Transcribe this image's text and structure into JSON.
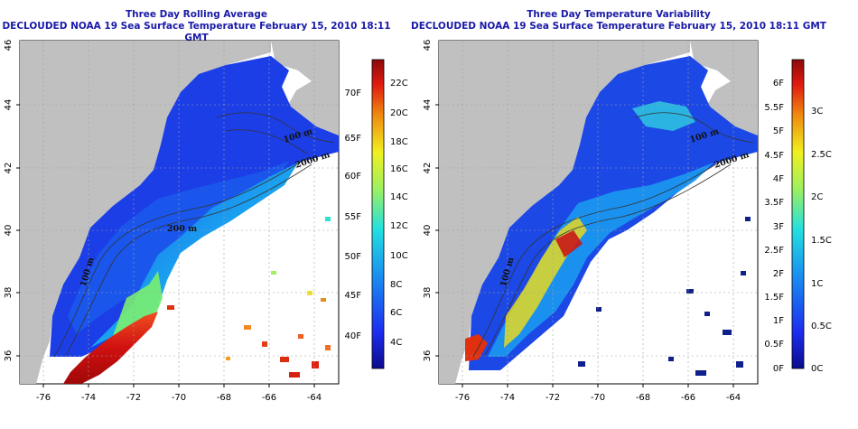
{
  "left_panel": {
    "title_line1": "Three Day Rolling Average",
    "title_line2": "DECLOUDED NOAA 19 Sea Surface Temperature February 15, 2010 18:11 GMT",
    "lat_ticks": [
      "46",
      "44",
      "42",
      "40",
      "38",
      "36"
    ],
    "lon_ticks": [
      "-76",
      "-74",
      "-72",
      "-70",
      "-68",
      "-66",
      "-64"
    ],
    "depth_labels": [
      "100 m",
      "2000 m",
      "200 m",
      "100 m"
    ],
    "colorbar_f_labels": [
      "70F",
      "65F",
      "60F",
      "55F",
      "50F",
      "45F",
      "40F"
    ],
    "colorbar_c_labels": [
      "22C",
      "20C",
      "18C",
      "16C",
      "14C",
      "12C",
      "10C",
      "8C",
      "6C",
      "4C"
    ]
  },
  "right_panel": {
    "title_line1": "Three Day Temperature Variability",
    "title_line2": "DECLOUDED NOAA 19 Sea Surface Temperature February 15, 2010 18:11 GMT",
    "lat_ticks": [
      "46",
      "44",
      "42",
      "40",
      "38",
      "36"
    ],
    "lon_ticks": [
      "-76",
      "-74",
      "-72",
      "-70",
      "-68",
      "-66",
      "-64"
    ],
    "depth_labels": [
      "100 m",
      "2000 m",
      "100 m"
    ],
    "colorbar_f_labels": [
      "6F",
      "5.5F",
      "5F",
      "4.5F",
      "4F",
      "3.5F",
      "3F",
      "2.5F",
      "2F",
      "1.5F",
      "1F",
      "0.5F",
      "0F"
    ],
    "colorbar_c_labels": [
      "3C",
      "2.5C",
      "2C",
      "1.5C",
      "1C",
      "0.5C",
      "0C"
    ]
  },
  "colors": {
    "land": "#c0c0c0",
    "title": "#1a1aa8",
    "grid": "#a0a0a0"
  }
}
